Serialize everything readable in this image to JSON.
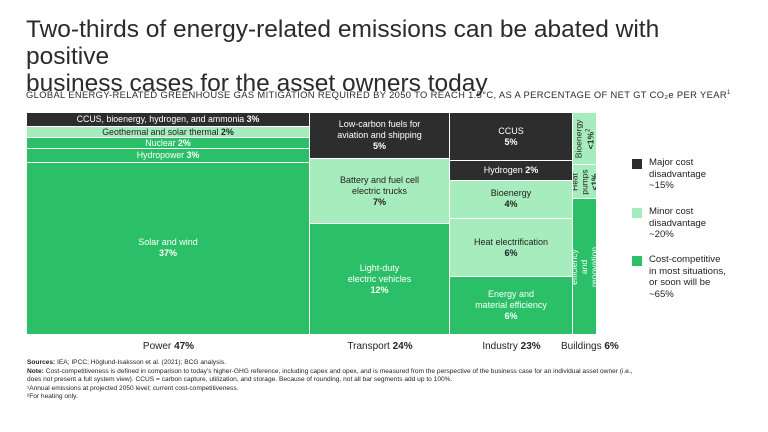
{
  "title": "Two-thirds of energy-related emissions can be abated with positive\nbusiness cases for the asset owners today",
  "subtitle": "GLOBAL ENERGY-RELATED GREENHOUSE GAS MITIGATION REQUIRED BY 2050 TO REACH 1.5°C, AS A PERCENTAGE OF NET GT CO₂e PER YEAR",
  "subtitle_sup": "1",
  "colors": {
    "major": "#2d2d2d",
    "minor": "#a7ecbd",
    "competitive": "#2bbf67"
  },
  "chart_data": {
    "type": "marimekko",
    "unit": "%",
    "categories": [
      {
        "name": "Power",
        "total_label": "47%",
        "total": 47,
        "segments": [
          {
            "label": "CCUS, bioenergy, hydrogen, and ammonia",
            "value_label": "3%",
            "value": 3,
            "group": "major"
          },
          {
            "label": "Geothermal and solar thermal",
            "value_label": "2%",
            "value": 2,
            "group": "minor"
          },
          {
            "label": "Nuclear",
            "value_label": "2%",
            "value": 2,
            "group": "competitive"
          },
          {
            "label": "Hydropower",
            "value_label": "3%",
            "value": 3,
            "group": "competitive"
          },
          {
            "label": "Solar and wind",
            "value_label": "37%",
            "value": 37,
            "group": "competitive"
          }
        ]
      },
      {
        "name": "Transport",
        "total_label": "24%",
        "total": 24,
        "segments": [
          {
            "label": "Low-carbon fuels for\naviation and shipping",
            "value_label": "5%",
            "value": 5,
            "group": "major"
          },
          {
            "label": "Battery and fuel cell\nelectric trucks",
            "value_label": "7%",
            "value": 7,
            "group": "minor"
          },
          {
            "label": "Light-duty\nelectric vehicles",
            "value_label": "12%",
            "value": 12,
            "group": "competitive"
          }
        ]
      },
      {
        "name": "Industry",
        "total_label": "23%",
        "total": 23,
        "segments": [
          {
            "label": "CCUS",
            "value_label": "5%",
            "value": 5,
            "group": "major"
          },
          {
            "label": "Hydrogen",
            "value_label": "2%",
            "value": 2,
            "group": "major"
          },
          {
            "label": "Bioenergy",
            "value_label": "4%",
            "value": 4,
            "group": "minor"
          },
          {
            "label": "Heat electrification",
            "value_label": "6%",
            "value": 6,
            "group": "minor"
          },
          {
            "label": "Energy and\nmaterial efficiency",
            "value_label": "6%",
            "value": 6,
            "group": "competitive"
          }
        ]
      },
      {
        "name": "Buildings",
        "total_label": "6%",
        "total": 6,
        "segments": [
          {
            "label": "Bioenergy",
            "value_label": "<1%",
            "value_sup": "2",
            "value": 0.8,
            "group": "minor"
          },
          {
            "label": "Heat\npumps",
            "value_label": "<1%",
            "value": 0.8,
            "group": "minor"
          },
          {
            "label": "Energy efficiency\nand renovation",
            "value_label": "4%",
            "value": 4,
            "group": "competitive"
          }
        ]
      }
    ],
    "legend": [
      {
        "label": "Major cost\ndisadvantage\n~15%",
        "group": "major"
      },
      {
        "label": "Minor cost\ndisadvantage\n~20%",
        "group": "minor"
      },
      {
        "label": "Cost-competitive\nin most situations,\nor soon will be\n~65%",
        "group": "competitive"
      }
    ]
  },
  "notes": {
    "sources_label": "Sources:",
    "sources": " IEA; IPCC; Höglund-Isaksson et al. (2021); BCG analysis.",
    "note_label": "Note:",
    "note_line1": " Cost-competitiveness is defined in comparison to today's higher-GHG reference, including capex and opex, and is measured from the perspective of the business case for an individual asset owner (i.e.,",
    "note_line2": "does not present a full system view). CCUS = carbon capture, utilization, and storage. Because of rounding, not all bar segments add up to 100%.",
    "footnote1": "¹Annual emissions at projected 2050 level; current cost-competitiveness.",
    "footnote2": "²For heating only."
  }
}
